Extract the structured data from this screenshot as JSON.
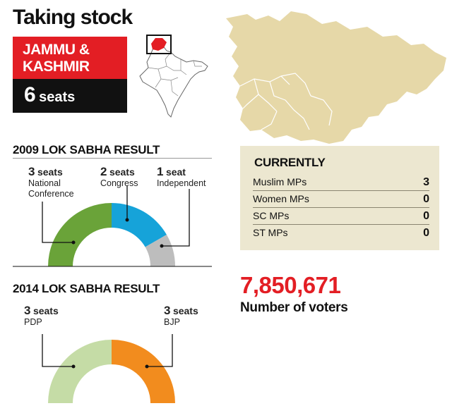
{
  "header": {
    "title": "Taking stock"
  },
  "state": {
    "name_line1": "JAMMU &",
    "name_line2": "KASHMIR",
    "seats_number": "6",
    "seats_unit": "seats"
  },
  "result_2009": {
    "title": "2009 LOK SABHA RESULT",
    "parties": [
      {
        "count": "3",
        "unit": "seats",
        "name_line1": "National",
        "name_line2": "Conference",
        "value": 3,
        "color": "#6aa339"
      },
      {
        "count": "2",
        "unit": "seats",
        "name_line1": "Congress",
        "name_line2": "",
        "value": 2,
        "color": "#16a3d9"
      },
      {
        "count": "1",
        "unit": "seat",
        "name_line1": "Independent",
        "name_line2": "",
        "value": 1,
        "color": "#bdbdbd"
      }
    ]
  },
  "result_2014": {
    "title": "2014 LOK SABHA RESULT",
    "parties": [
      {
        "count": "3",
        "unit": "seats",
        "name_line1": "PDP",
        "value": 3,
        "color": "#c5dca6"
      },
      {
        "count": "3",
        "unit": "seats",
        "name_line1": "BJP",
        "value": 3,
        "color": "#f28c1e"
      }
    ]
  },
  "currently": {
    "title": "CURRENTLY",
    "rows": [
      {
        "label": "Muslim MPs",
        "value": "3"
      },
      {
        "label": "Women MPs",
        "value": "0"
      },
      {
        "label": "SC MPs",
        "value": "0"
      },
      {
        "label": "ST MPs",
        "value": "0"
      }
    ]
  },
  "voters": {
    "number": "7,850,671",
    "label": "Number of voters"
  },
  "colors": {
    "accent_red": "#e31e24",
    "map_fill": "#e6d8a8",
    "panel_bg": "#ece7d0"
  }
}
